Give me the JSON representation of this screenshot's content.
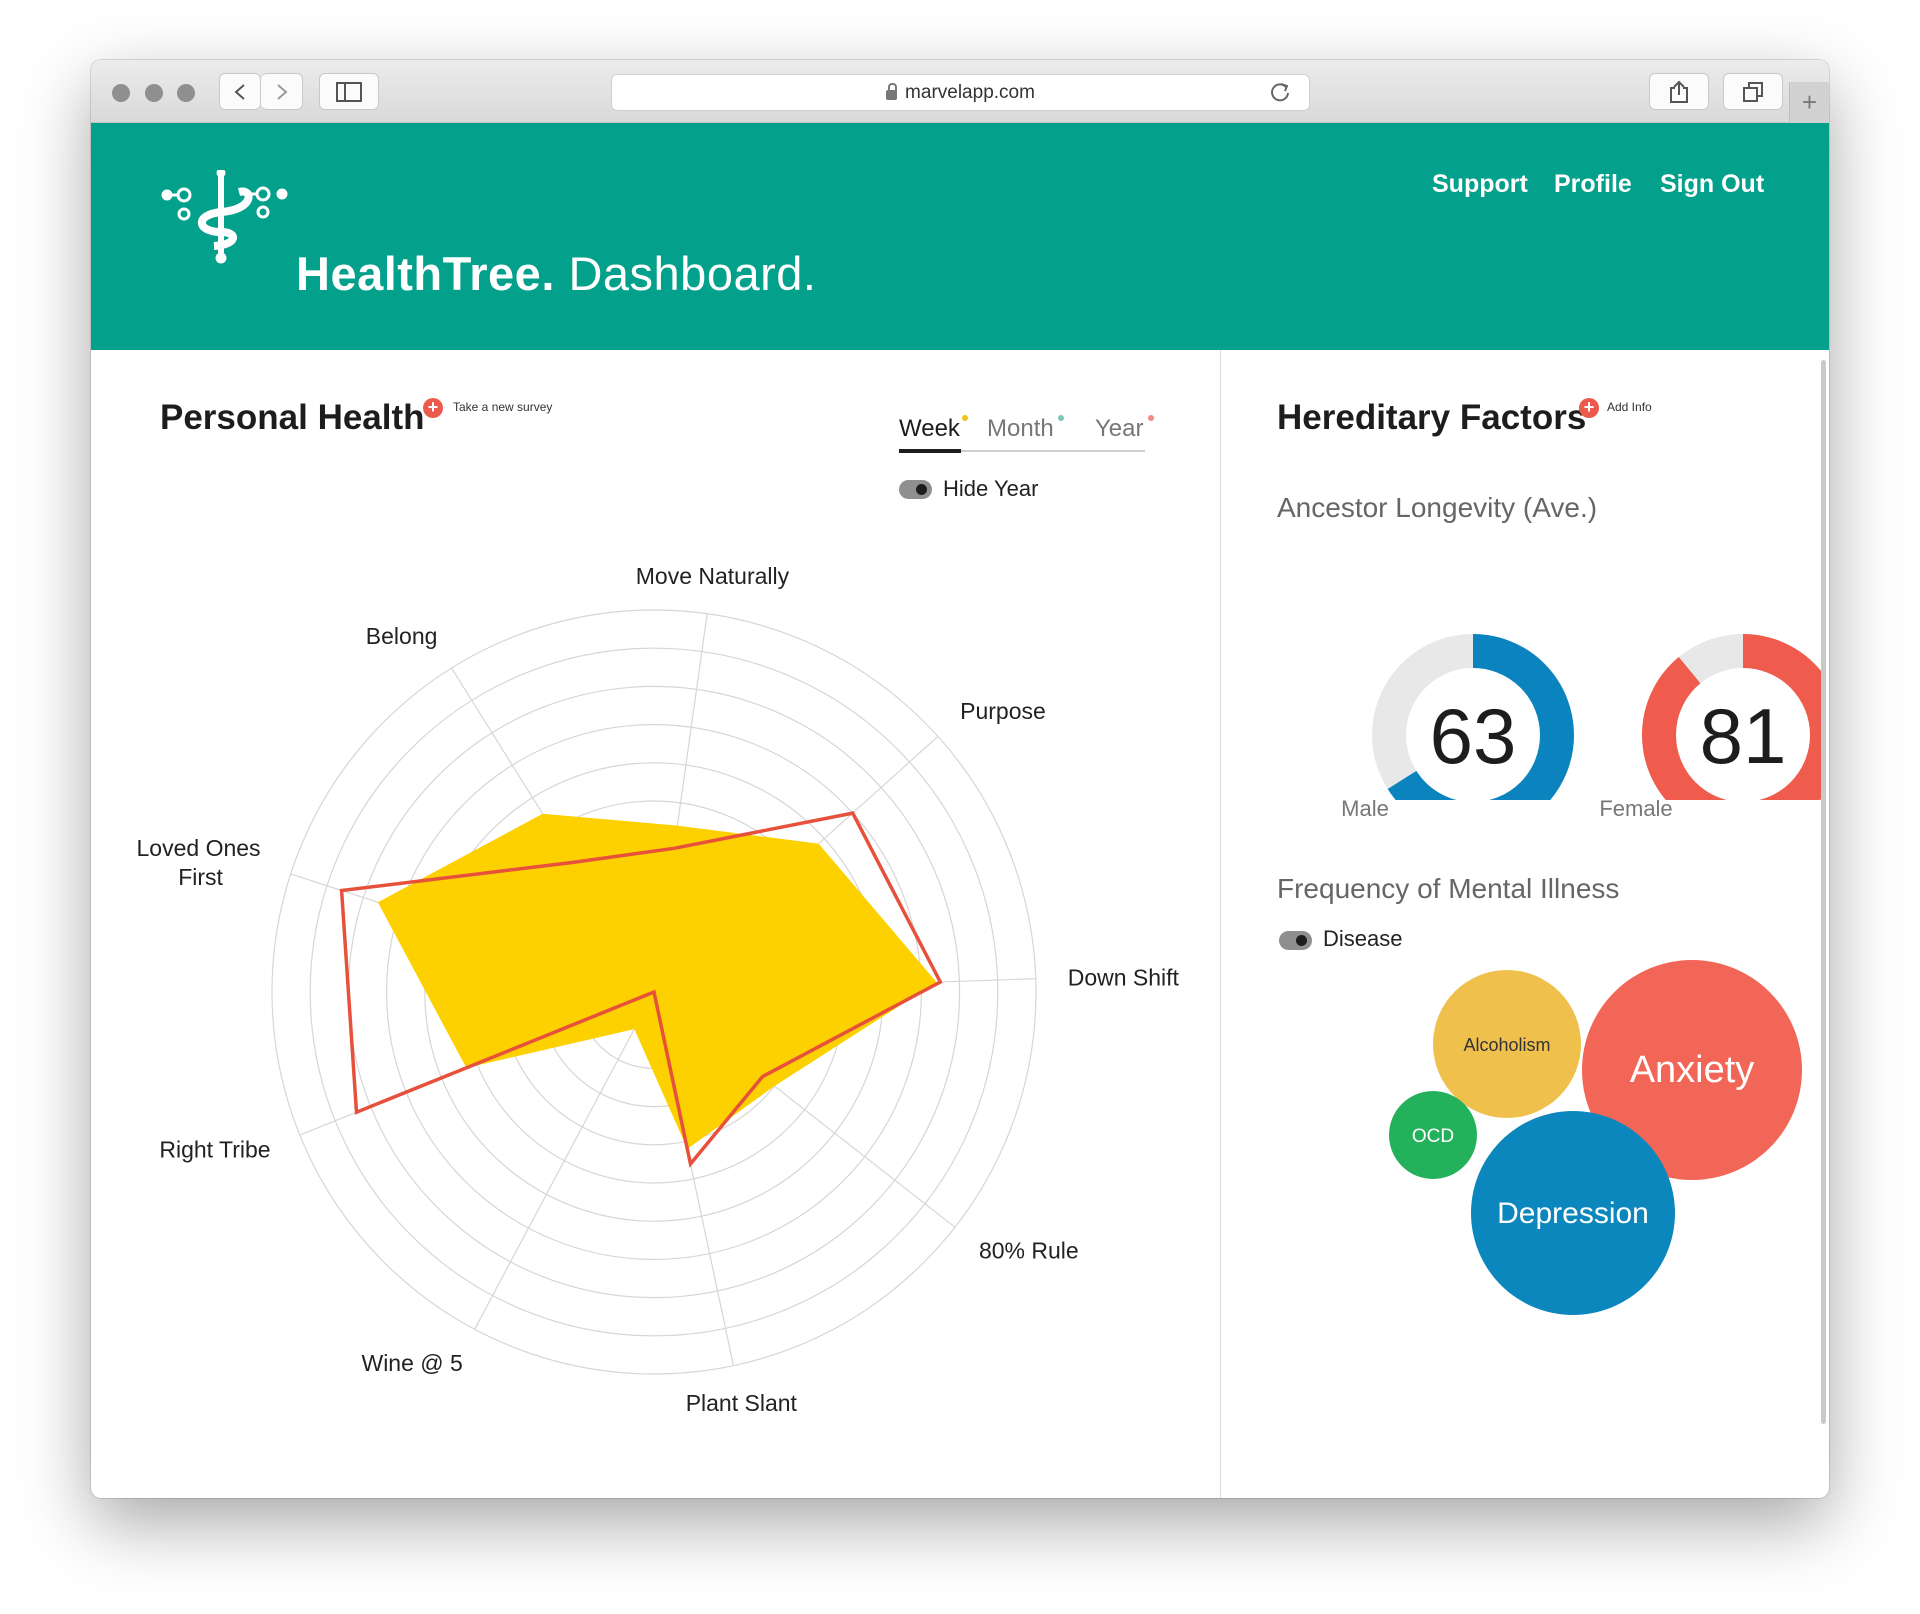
{
  "browser": {
    "url": "marvelapp.com",
    "icons": [
      "back-icon",
      "forward-icon",
      "sidebar-icon",
      "lock-icon",
      "reload-icon",
      "share-icon",
      "tabs-icon",
      "new-tab-icon"
    ]
  },
  "header": {
    "brand_name": "HealthTree.",
    "brand_section": "Dashboard.",
    "nav": [
      "Support",
      "Profile",
      "Sign Out"
    ]
  },
  "colors": {
    "header": "#03a08c",
    "radar_fill": "#fdd000",
    "radar_line": "#e7513b",
    "male": "#0b83be",
    "female": "#ef5b4c",
    "ring_track": "#e8e8e8"
  },
  "personal_health": {
    "title": "Personal Health",
    "action": "Take a new survey",
    "tabs": [
      {
        "label": "Week",
        "dot": "#f2c318",
        "active": true
      },
      {
        "label": "Month",
        "dot": "#7ac6b7",
        "active": false
      },
      {
        "label": "Year",
        "dot": "#ef8b82",
        "active": false
      }
    ],
    "toggle_label": "Hide Year"
  },
  "chart_data": {
    "type": "radar",
    "axes": [
      "Move Naturally",
      "Purpose",
      "Down Shift",
      "80% Rule",
      "Plant Slant",
      "Wine @ 5",
      "Right Tribe",
      "Loved Ones First",
      "Belong"
    ],
    "rings": 10,
    "max": 10,
    "series": [
      {
        "style": "filled",
        "values": [
          4.4,
          5.8,
          7.4,
          4.0,
          4.2,
          1.1,
          5.3,
          7.6,
          5.5
        ]
      },
      {
        "style": "outline",
        "values": [
          3.8,
          7.0,
          7.5,
          3.6,
          4.6,
          0.0,
          8.4,
          8.6,
          4.0
        ]
      }
    ]
  },
  "hereditary": {
    "title": "Hereditary Factors",
    "action": "Add Info",
    "longevity_title": "Ancestor Longevity (Ave.)",
    "longevity": [
      {
        "label": "Male",
        "value": 63,
        "fill_fraction": 0.66
      },
      {
        "label": "Female",
        "value": 81,
        "fill_fraction": 0.89
      }
    ],
    "mental_title": "Frequency of Mental Illness",
    "toggle_label": "Disease",
    "bubbles": [
      {
        "label": "Alcoholism",
        "color": "#f0c04d"
      },
      {
        "label": "Anxiety",
        "color": "#f16656"
      },
      {
        "label": "OCD",
        "color": "#23b25b"
      },
      {
        "label": "Depression",
        "color": "#0b87bd"
      }
    ]
  }
}
